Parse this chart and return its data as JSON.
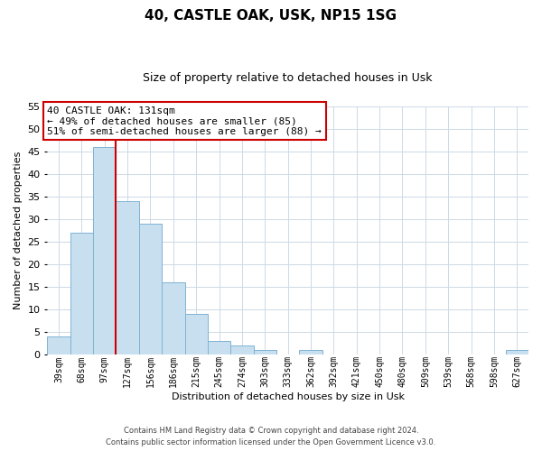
{
  "title": "40, CASTLE OAK, USK, NP15 1SG",
  "subtitle": "Size of property relative to detached houses in Usk",
  "xlabel": "Distribution of detached houses by size in Usk",
  "ylabel": "Number of detached properties",
  "bin_labels": [
    "39sqm",
    "68sqm",
    "97sqm",
    "127sqm",
    "156sqm",
    "186sqm",
    "215sqm",
    "245sqm",
    "274sqm",
    "303sqm",
    "333sqm",
    "362sqm",
    "392sqm",
    "421sqm",
    "450sqm",
    "480sqm",
    "509sqm",
    "539sqm",
    "568sqm",
    "598sqm",
    "627sqm"
  ],
  "bar_values": [
    4,
    27,
    46,
    34,
    29,
    16,
    9,
    3,
    2,
    1,
    0,
    1,
    0,
    0,
    0,
    0,
    0,
    0,
    0,
    0,
    1
  ],
  "bar_color": "#c8dff0",
  "bar_edge_color": "#7fb3d3",
  "vline_color": "#cc0000",
  "vline_index": 2.5,
  "ylim": [
    0,
    55
  ],
  "yticks": [
    0,
    5,
    10,
    15,
    20,
    25,
    30,
    35,
    40,
    45,
    50,
    55
  ],
  "annotation_line1": "40 CASTLE OAK: 131sqm",
  "annotation_line2": "← 49% of detached houses are smaller (85)",
  "annotation_line3": "51% of semi-detached houses are larger (88) →",
  "annotation_box_color": "#ffffff",
  "annotation_box_edge": "#cc0000",
  "footer_line1": "Contains HM Land Registry data © Crown copyright and database right 2024.",
  "footer_line2": "Contains public sector information licensed under the Open Government Licence v3.0.",
  "background_color": "#ffffff",
  "grid_color": "#cdd9e5",
  "title_fontsize": 11,
  "subtitle_fontsize": 9,
  "axis_fontsize": 8,
  "tick_fontsize": 7
}
